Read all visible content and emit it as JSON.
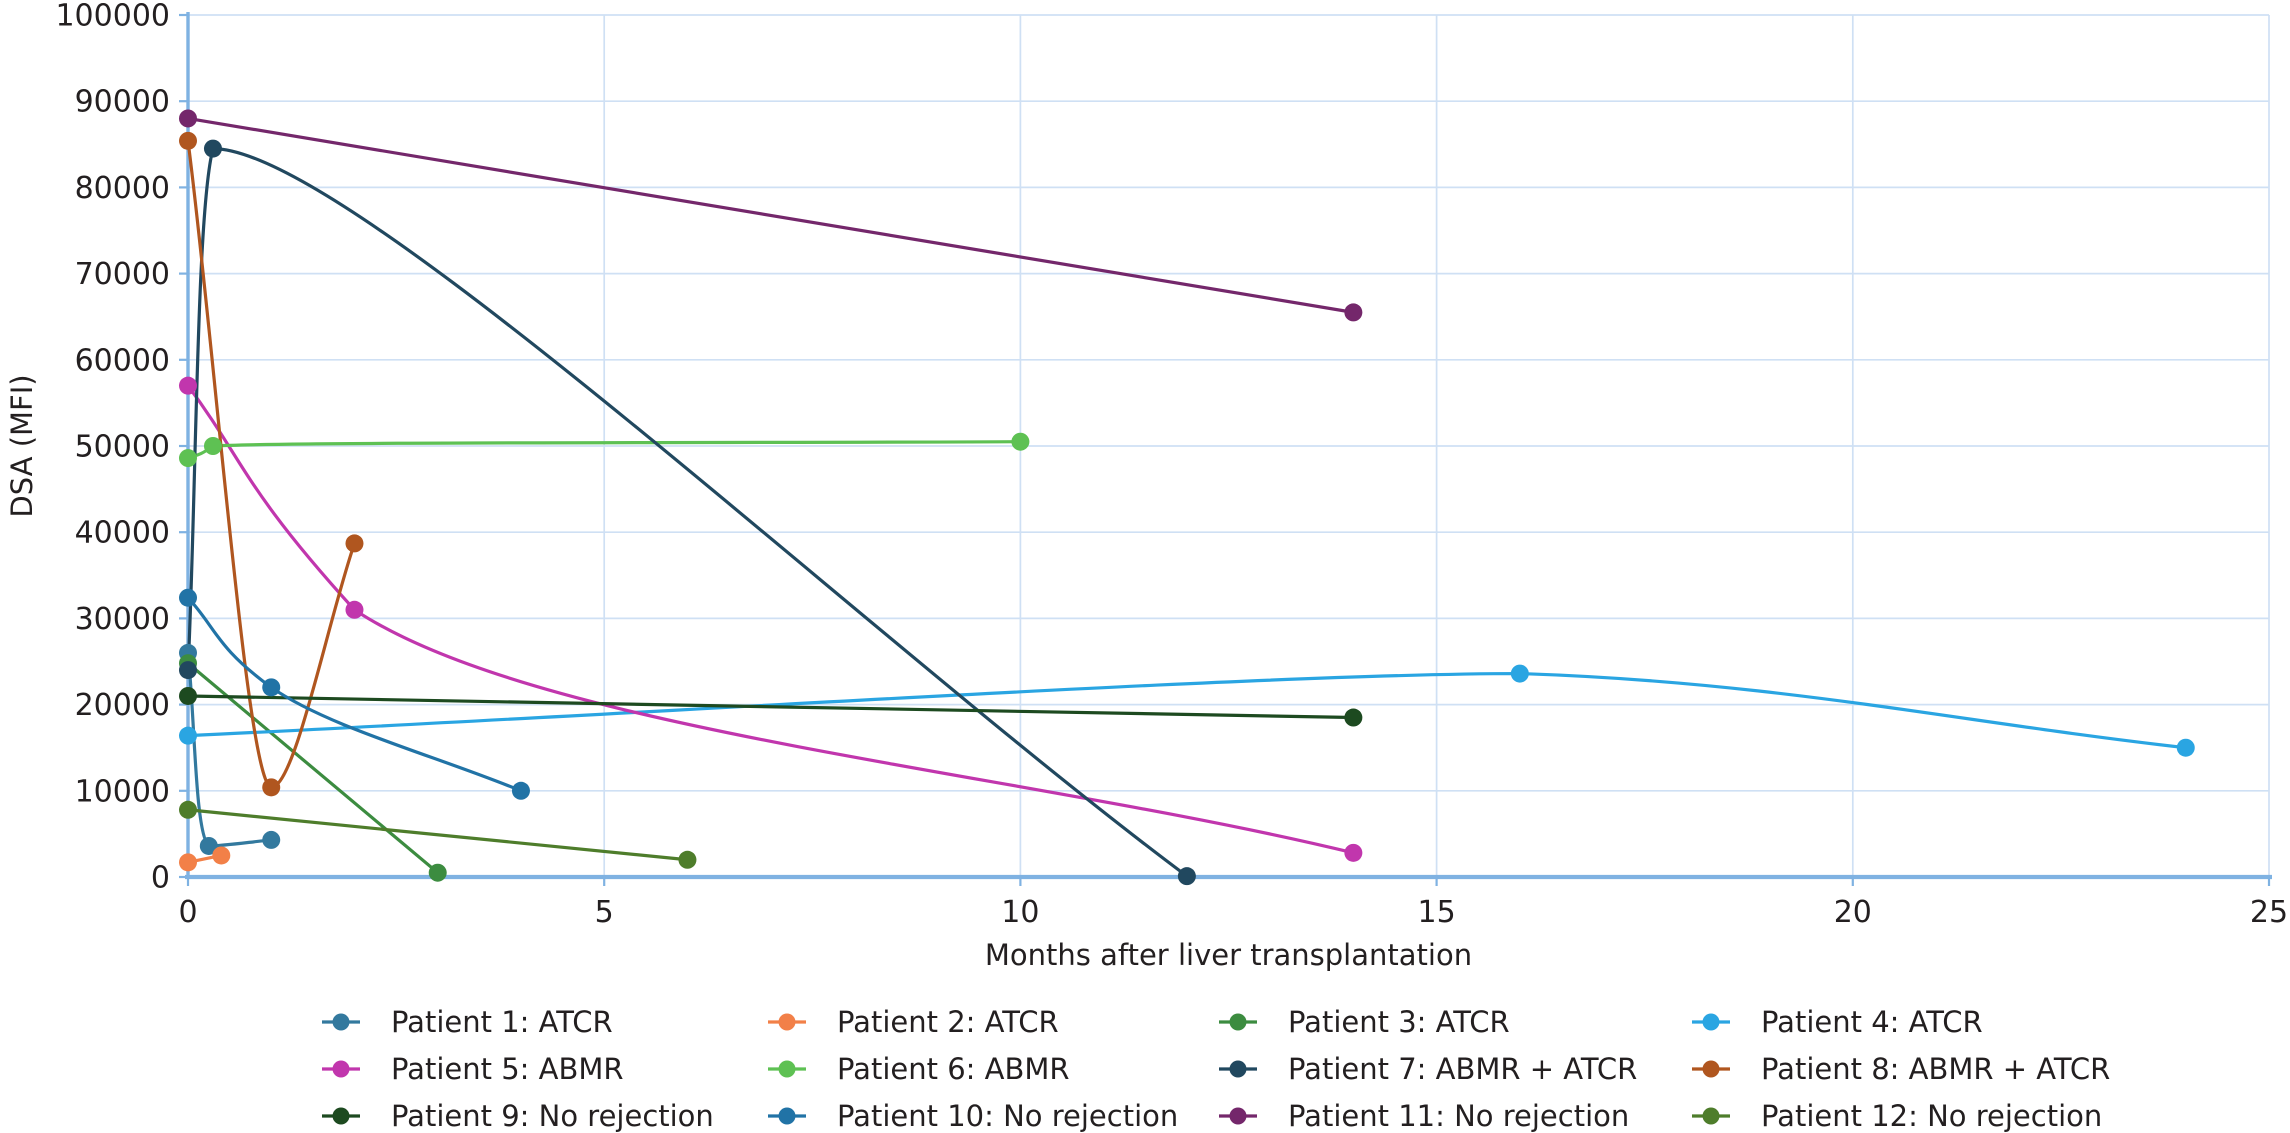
{
  "chart_data": {
    "type": "line",
    "title": "",
    "xlabel": "Months after liver transplantation",
    "ylabel": "DSA (MFI)",
    "xlim": [
      0,
      25
    ],
    "ylim": [
      0,
      100000
    ],
    "x_ticks": [
      0,
      5,
      10,
      15,
      20,
      25
    ],
    "y_ticks": [
      0,
      10000,
      20000,
      30000,
      40000,
      50000,
      60000,
      70000,
      80000,
      90000,
      100000
    ],
    "grid": true,
    "legend_position": "bottom",
    "legend_columns": 4,
    "series": [
      {
        "name": "Patient 1: ATCR",
        "color": "#33799e",
        "points": [
          [
            0,
            26000
          ],
          [
            0.25,
            3600
          ],
          [
            1,
            4300
          ]
        ]
      },
      {
        "name": "Patient 2: ATCR",
        "color": "#f28048",
        "points": [
          [
            0,
            1700
          ],
          [
            0.4,
            2500
          ]
        ]
      },
      {
        "name": "Patient 3: ATCR",
        "color": "#3c8c40",
        "points": [
          [
            0,
            24800
          ],
          [
            3,
            500
          ]
        ]
      },
      {
        "name": "Patient 4: ATCR",
        "color": "#2aa5e2",
        "points": [
          [
            0,
            16400
          ],
          [
            16,
            23600
          ],
          [
            24,
            15000
          ]
        ]
      },
      {
        "name": "Patient 5: ABMR",
        "color": "#c136ad",
        "points": [
          [
            0,
            57000
          ],
          [
            2,
            31000
          ],
          [
            14,
            2800
          ]
        ]
      },
      {
        "name": "Patient 6: ABMR",
        "color": "#5ec153",
        "points": [
          [
            0,
            48600
          ],
          [
            0.3,
            50000
          ],
          [
            10,
            50500
          ]
        ]
      },
      {
        "name": "Patient 7: ABMR + ATCR",
        "color": "#21485f",
        "points": [
          [
            0,
            24000
          ],
          [
            0.3,
            84500
          ],
          [
            12,
            100
          ]
        ]
      },
      {
        "name": "Patient 8: ABMR + ATCR",
        "color": "#b0561f",
        "points": [
          [
            0,
            85400
          ],
          [
            1,
            10400
          ],
          [
            2,
            38700
          ]
        ]
      },
      {
        "name": "Patient 9: No rejection",
        "color": "#1d4a20",
        "points": [
          [
            0,
            21000
          ],
          [
            14,
            18500
          ]
        ]
      },
      {
        "name": "Patient 10: No rejection",
        "color": "#2173a6",
        "points": [
          [
            0,
            32400
          ],
          [
            1,
            22000
          ],
          [
            4,
            10000
          ]
        ]
      },
      {
        "name": "Patient 11: No rejection",
        "color": "#74276b",
        "points": [
          [
            0,
            88000
          ],
          [
            14,
            65500
          ]
        ]
      },
      {
        "name": "Patient 12: No rejection",
        "color": "#4e7d2b",
        "points": [
          [
            0,
            7800
          ],
          [
            6,
            2000
          ]
        ]
      }
    ],
    "colors": {
      "axis": "#7fb2e2",
      "grid": "#cfe0f4",
      "text": "#231f20"
    }
  }
}
